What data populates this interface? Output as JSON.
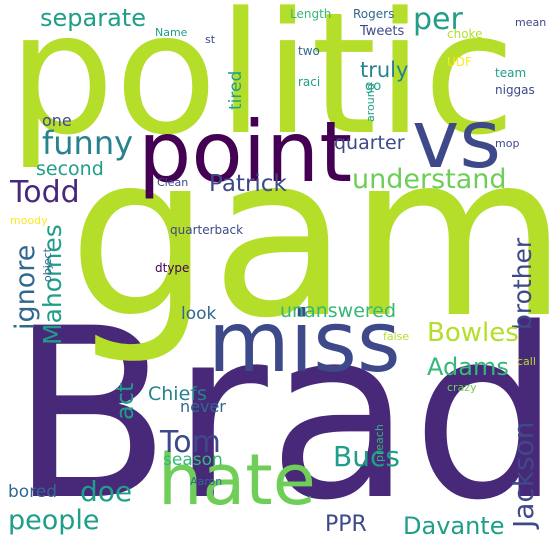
{
  "palette": {
    "lime": "#b5de2b",
    "green": "#6ece58",
    "seagreen": "#35b779",
    "teal": "#1f9e89",
    "teal_blue": "#26828e",
    "steel": "#31688e",
    "indigo": "#3e4989",
    "purple": "#482878",
    "deep_purple": "#440154",
    "yellow": "#fde725"
  },
  "words": [
    {
      "id": "brady",
      "text": "Brady",
      "color": "purple"
    },
    {
      "id": "game",
      "text": "game",
      "color": "lime"
    },
    {
      "id": "politic",
      "text": "politic",
      "color": "lime"
    },
    {
      "id": "point",
      "text": "point",
      "color": "deep_purple"
    },
    {
      "id": "vs",
      "text": "vs",
      "color": "indigo"
    },
    {
      "id": "miss",
      "text": "miss",
      "color": "indigo"
    },
    {
      "id": "hate",
      "text": "hate",
      "color": "green"
    },
    {
      "id": "separate",
      "text": "separate",
      "color": "teal"
    },
    {
      "id": "per",
      "text": "per",
      "color": "teal"
    },
    {
      "id": "funny",
      "text": "funny",
      "color": "teal_blue"
    },
    {
      "id": "understand",
      "text": "understand",
      "color": "green"
    },
    {
      "id": "patrick",
      "text": "Patrick",
      "color": "indigo"
    },
    {
      "id": "todd",
      "text": "Todd",
      "color": "purple"
    },
    {
      "id": "second",
      "text": "second",
      "color": "teal"
    },
    {
      "id": "truly",
      "text": "truly",
      "color": "teal_blue"
    },
    {
      "id": "one",
      "text": "one",
      "color": "indigo"
    },
    {
      "id": "quarter",
      "text": "quarter",
      "color": "indigo"
    },
    {
      "id": "ignore",
      "text": "ignore",
      "color": "steel"
    },
    {
      "id": "mahomes",
      "text": "Mahomes",
      "color": "teal"
    },
    {
      "id": "brother",
      "text": "brother",
      "color": "indigo"
    },
    {
      "id": "bowles",
      "text": "Bowles",
      "color": "lime"
    },
    {
      "id": "adams",
      "text": "Adams",
      "color": "seagreen"
    },
    {
      "id": "unanswered",
      "text": "unanswered",
      "color": "seagreen"
    },
    {
      "id": "look",
      "text": "look",
      "color": "steel"
    },
    {
      "id": "act",
      "text": "act",
      "color": "teal"
    },
    {
      "id": "chiefs",
      "text": "Chiefs",
      "color": "teal_blue"
    },
    {
      "id": "tom",
      "text": "Tom",
      "color": "indigo"
    },
    {
      "id": "never",
      "text": "never",
      "color": "steel"
    },
    {
      "id": "season",
      "text": "season",
      "color": "seagreen"
    },
    {
      "id": "doe",
      "text": "doe",
      "color": "teal"
    },
    {
      "id": "bucs",
      "text": "Bucs",
      "color": "teal"
    },
    {
      "id": "jackson",
      "text": "Jackson",
      "color": "indigo"
    },
    {
      "id": "people",
      "text": "people",
      "color": "teal"
    },
    {
      "id": "bored",
      "text": "bored",
      "color": "steel"
    },
    {
      "id": "ppr",
      "text": "PPR",
      "color": "indigo"
    },
    {
      "id": "davante",
      "text": "Davante",
      "color": "teal"
    },
    {
      "id": "tired",
      "text": "tired",
      "color": "teal"
    },
    {
      "id": "length",
      "text": "Length",
      "color": "seagreen"
    },
    {
      "id": "rogers",
      "text": "Rogers",
      "color": "steel"
    },
    {
      "id": "name",
      "text": "Name",
      "color": "teal"
    },
    {
      "id": "st",
      "text": "st",
      "color": "indigo"
    },
    {
      "id": "tweets",
      "text": "Tweets",
      "color": "indigo"
    },
    {
      "id": "mean",
      "text": "mean",
      "color": "indigo"
    },
    {
      "id": "choke",
      "text": "choke",
      "color": "lime"
    },
    {
      "id": "two",
      "text": "two",
      "color": "steel"
    },
    {
      "id": "udf",
      "text": "UDF",
      "color": "yellow"
    },
    {
      "id": "team",
      "text": "team",
      "color": "teal"
    },
    {
      "id": "raci",
      "text": "raci",
      "color": "teal"
    },
    {
      "id": "go",
      "text": "go",
      "color": "teal"
    },
    {
      "id": "niggas",
      "text": "niggas",
      "color": "indigo"
    },
    {
      "id": "around",
      "text": "around",
      "color": "teal"
    },
    {
      "id": "mop",
      "text": "mop",
      "color": "indigo"
    },
    {
      "id": "clean",
      "text": "Clean",
      "color": "indigo"
    },
    {
      "id": "moody",
      "text": "moody",
      "color": "yellow"
    },
    {
      "id": "quarterback",
      "text": "quarterback",
      "color": "indigo"
    },
    {
      "id": "object",
      "text": "object",
      "color": "steel"
    },
    {
      "id": "dtype",
      "text": "dtype",
      "color": "deep_purple"
    },
    {
      "id": "false",
      "text": "false",
      "color": "lime"
    },
    {
      "id": "call",
      "text": "call",
      "color": "lime"
    },
    {
      "id": "crazy",
      "text": "crazy",
      "color": "green"
    },
    {
      "id": "preach",
      "text": "preach",
      "color": "seagreen"
    },
    {
      "id": "aaron",
      "text": "Aaron",
      "color": "steel"
    }
  ]
}
